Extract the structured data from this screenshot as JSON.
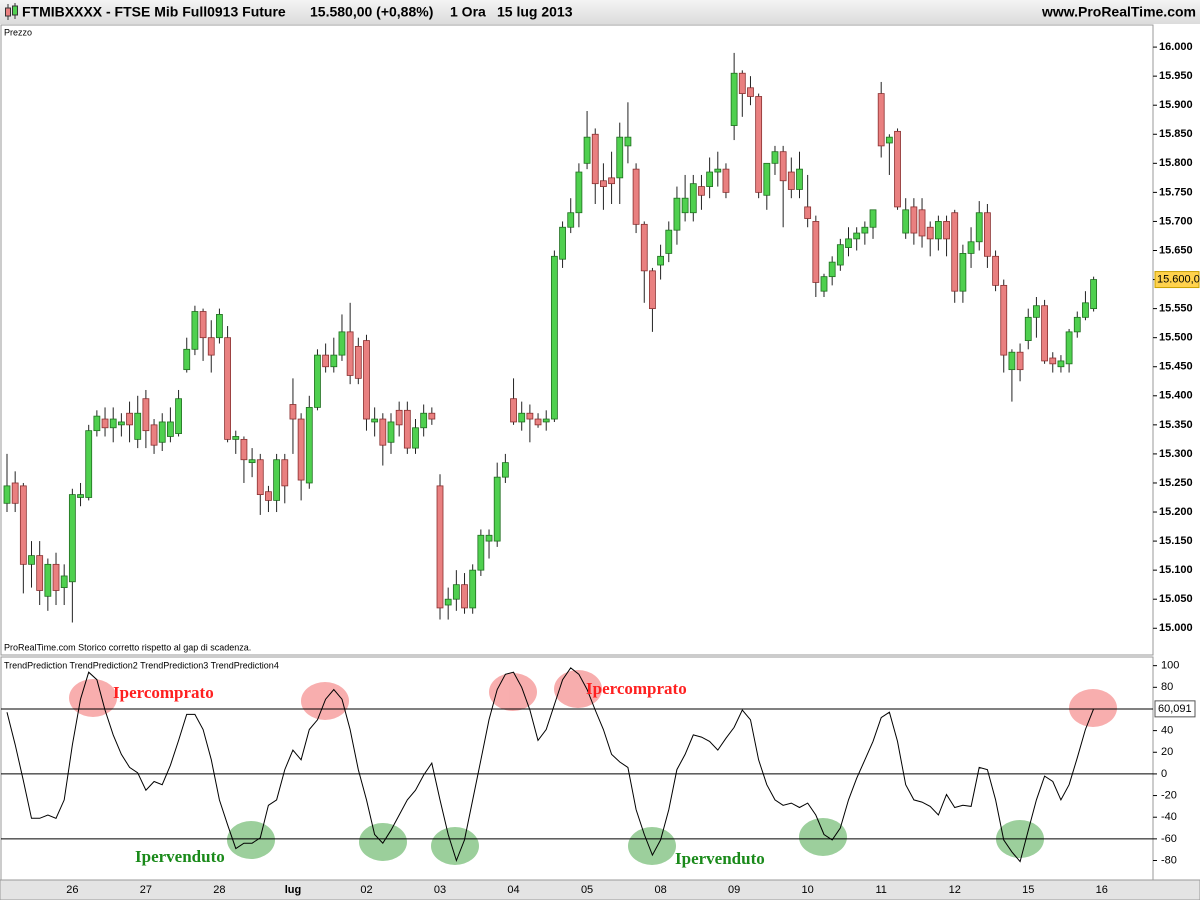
{
  "header": {
    "symbol": "FTMIBXXXX - FTSE Mib Full0913 Future",
    "quote": "15.580,00 (+0,88%)",
    "interval": "1 Ora",
    "date": "15 lug 2013",
    "site": "www.ProRealTime.com"
  },
  "chart_data": [
    {
      "type": "candlestick",
      "panel_label": "Prezzo",
      "note": "ProRealTime.com  Storico corretto rispetto al gap di scadenza.",
      "up_color": "#4fd04f",
      "down_color": "#e98080",
      "categories": [
        null,
        null,
        null,
        null,
        null,
        null,
        null,
        null,
        "26",
        null,
        null,
        null,
        null,
        null,
        null,
        null,
        null,
        "27",
        null,
        null,
        null,
        null,
        null,
        null,
        null,
        null,
        "28",
        null,
        null,
        null,
        null,
        null,
        null,
        null,
        null,
        "lug",
        null,
        null,
        null,
        null,
        null,
        null,
        null,
        null,
        "02",
        null,
        null,
        null,
        null,
        null,
        null,
        null,
        null,
        "03",
        null,
        null,
        null,
        null,
        null,
        null,
        null,
        null,
        "04",
        null,
        null,
        null,
        null,
        null,
        null,
        null,
        null,
        "05",
        null,
        null,
        null,
        null,
        null,
        null,
        null,
        null,
        "08",
        null,
        null,
        null,
        null,
        null,
        null,
        null,
        null,
        "09",
        null,
        null,
        null,
        null,
        null,
        null,
        null,
        null,
        "10",
        null,
        null,
        null,
        null,
        null,
        null,
        null,
        null,
        "11",
        null,
        null,
        null,
        null,
        null,
        null,
        null,
        null,
        "12",
        null,
        null,
        null,
        null,
        null,
        null,
        null,
        null,
        "15",
        null,
        null,
        null,
        null,
        null,
        null,
        null,
        null,
        "16"
      ],
      "open": [
        15215,
        15250,
        15245,
        15110,
        15125,
        15055,
        15110,
        15070,
        15080,
        15225,
        15225,
        15340,
        15360,
        15345,
        15350,
        15370,
        15325,
        15395,
        15350,
        15320,
        15330,
        15335,
        15445,
        15480,
        15545,
        15500,
        15500,
        15500,
        15325,
        15325,
        15285,
        15290,
        15235,
        15220,
        15290,
        15385,
        15360,
        15250,
        15380,
        15470,
        15450,
        15470,
        15510,
        15485,
        15495,
        15355,
        15360,
        15320,
        15375,
        15375,
        15310,
        15345,
        15370,
        15245,
        15040,
        15050,
        15075,
        15035,
        15100,
        15150,
        15150,
        15260,
        15395,
        15355,
        15370,
        15360,
        15355,
        15360,
        15635,
        15690,
        15715,
        15800,
        15850,
        15770,
        15775,
        15775,
        15830,
        15790,
        15695,
        15615,
        15625,
        15645,
        15685,
        15715,
        15715,
        15760,
        15760,
        15785,
        15790,
        15865,
        15955,
        15930,
        15915,
        15745,
        15800,
        15820,
        15785,
        15755,
        15725,
        15700,
        15580,
        15605,
        15625,
        15655,
        15670,
        15680,
        15690,
        15920,
        15835,
        15855,
        15680,
        15725,
        15720,
        15690,
        15670,
        15700,
        15715,
        15580,
        15645,
        15665,
        15715,
        15640,
        15590,
        15445,
        15475,
        15495,
        15535,
        15555,
        15465,
        15450,
        15455,
        15510,
        15535,
        15550,
        null
      ],
      "high": [
        15300,
        15270,
        15250,
        15150,
        15150,
        15120,
        15130,
        15110,
        15240,
        15250,
        15350,
        15375,
        15380,
        15380,
        15370,
        15390,
        15400,
        15410,
        15360,
        15370,
        15380,
        15410,
        15500,
        15555,
        15550,
        15530,
        15550,
        15520,
        15340,
        15330,
        15310,
        15300,
        15245,
        15300,
        15300,
        15430,
        15370,
        15400,
        15480,
        15490,
        15500,
        15540,
        15560,
        15500,
        15505,
        15380,
        15370,
        15370,
        15390,
        15390,
        15360,
        15385,
        15380,
        15265,
        15070,
        15100,
        15095,
        15110,
        15170,
        15170,
        15285,
        15300,
        15430,
        15390,
        15385,
        15370,
        15375,
        15650,
        15700,
        15740,
        15800,
        15890,
        15860,
        15800,
        15820,
        15870,
        15905,
        15800,
        15700,
        15620,
        15660,
        15700,
        15760,
        15780,
        15780,
        15780,
        15810,
        15820,
        15800,
        15990,
        15960,
        15950,
        15920,
        15800,
        15830,
        15830,
        15810,
        15820,
        15780,
        15710,
        15610,
        15640,
        15670,
        15690,
        15690,
        15700,
        15720,
        15940,
        15850,
        15860,
        15740,
        15740,
        15740,
        15700,
        15710,
        15710,
        15720,
        15660,
        15690,
        15735,
        15730,
        15650,
        15600,
        15480,
        15490,
        15550,
        15570,
        15565,
        15475,
        15470,
        15515,
        15545,
        15580,
        15605,
        null
      ],
      "low": [
        15200,
        15200,
        15060,
        15070,
        15040,
        15030,
        15040,
        15040,
        15010,
        15210,
        15220,
        15330,
        15330,
        15320,
        15330,
        15320,
        15310,
        15310,
        15300,
        15305,
        15320,
        15330,
        15440,
        15470,
        15460,
        15440,
        15490,
        15320,
        15300,
        15250,
        15260,
        15195,
        15200,
        15200,
        15215,
        15300,
        15220,
        15240,
        15375,
        15440,
        15440,
        15460,
        15420,
        15420,
        15340,
        15330,
        15280,
        15300,
        15330,
        15300,
        15300,
        15330,
        15350,
        15015,
        15015,
        15030,
        15025,
        15025,
        15090,
        15120,
        15140,
        15250,
        15350,
        15340,
        15320,
        15345,
        15340,
        15355,
        15620,
        15680,
        15690,
        15790,
        15730,
        15720,
        15730,
        15730,
        15800,
        15680,
        15560,
        15510,
        15600,
        15630,
        15660,
        15700,
        15700,
        15720,
        15740,
        15760,
        15740,
        15840,
        15880,
        15900,
        15740,
        15720,
        15780,
        15690,
        15740,
        15740,
        15690,
        15570,
        15570,
        15590,
        15615,
        15640,
        15650,
        15660,
        15670,
        15810,
        15780,
        15720,
        15670,
        15660,
        15655,
        15640,
        15650,
        15640,
        15560,
        15560,
        15620,
        15650,
        15620,
        15580,
        15440,
        15390,
        15425,
        15480,
        15500,
        15455,
        15440,
        15440,
        15440,
        15500,
        15530,
        15545,
        null
      ],
      "close": [
        15245,
        15215,
        15110,
        15125,
        15065,
        15110,
        15065,
        15090,
        15230,
        15230,
        15340,
        15365,
        15345,
        15360,
        15355,
        15350,
        15370,
        15340,
        15315,
        15355,
        15355,
        15395,
        15480,
        15545,
        15500,
        15470,
        15540,
        15325,
        15330,
        15290,
        15290,
        15230,
        15220,
        15290,
        15245,
        15360,
        15255,
        15380,
        15470,
        15450,
        15470,
        15510,
        15435,
        15430,
        15360,
        15360,
        15315,
        15355,
        15350,
        15310,
        15345,
        15370,
        15360,
        15035,
        15050,
        15075,
        15035,
        15100,
        15160,
        15160,
        15260,
        15285,
        15355,
        15370,
        15360,
        15350,
        15360,
        15640,
        15690,
        15715,
        15785,
        15845,
        15765,
        15760,
        15765,
        15845,
        15845,
        15695,
        15615,
        15550,
        15640,
        15685,
        15740,
        15740,
        15765,
        15745,
        15785,
        15790,
        15750,
        15955,
        15920,
        15915,
        15750,
        15800,
        15820,
        15770,
        15755,
        15790,
        15705,
        15595,
        15605,
        15630,
        15660,
        15670,
        15680,
        15690,
        15720,
        15830,
        15845,
        15725,
        15720,
        15680,
        15675,
        15670,
        15700,
        15670,
        15580,
        15645,
        15665,
        15715,
        15640,
        15590,
        15470,
        15475,
        15445,
        15535,
        15555,
        15460,
        15455,
        15460,
        15510,
        15535,
        15560,
        15600,
        null
      ],
      "last_value_label": "15.600,00",
      "ylim": [
        14954,
        16038
      ],
      "yticks": [
        {
          "value": 15000,
          "label": "15.000"
        },
        {
          "value": 15050,
          "label": "15.050"
        },
        {
          "value": 15100,
          "label": "15.100"
        },
        {
          "value": 15150,
          "label": "15.150"
        },
        {
          "value": 15200,
          "label": "15.200"
        },
        {
          "value": 15250,
          "label": "15.250"
        },
        {
          "value": 15300,
          "label": "15.300"
        },
        {
          "value": 15350,
          "label": "15.350"
        },
        {
          "value": 15400,
          "label": "15.400"
        },
        {
          "value": 15450,
          "label": "15.450"
        },
        {
          "value": 15500,
          "label": "15.500"
        },
        {
          "value": 15550,
          "label": "15.550"
        },
        {
          "value": 15600,
          "label": "15.600"
        },
        {
          "value": 15650,
          "label": "15.650"
        },
        {
          "value": 15700,
          "label": "15.700"
        },
        {
          "value": 15750,
          "label": "15.750"
        },
        {
          "value": 15800,
          "label": "15.800"
        },
        {
          "value": 15850,
          "label": "15.850"
        },
        {
          "value": 15900,
          "label": "15.900"
        },
        {
          "value": 15950,
          "label": "15.950"
        },
        {
          "value": 16000,
          "label": "16.000"
        }
      ]
    },
    {
      "type": "line",
      "panel_label": "TrendPrediction TrendPrediction2 TrendPrediction3 TrendPrediction4",
      "color": "#000000",
      "values": [
        57,
        27,
        -6,
        -41,
        -41,
        -38,
        -41,
        -24,
        27,
        69,
        94,
        87,
        59,
        36,
        18,
        6,
        1,
        -15,
        -7,
        -10,
        8,
        31,
        55,
        55,
        41,
        13,
        -24,
        -47,
        -69,
        -64,
        -64,
        -59,
        -29,
        -24,
        4,
        22,
        13,
        41,
        50,
        69,
        78,
        69,
        41,
        4,
        -24,
        -56,
        -64,
        -52,
        -38,
        -24,
        -15,
        -1,
        10,
        -24,
        -56,
        -80,
        -61,
        -24,
        13,
        50,
        78,
        92,
        94,
        80,
        59,
        31,
        41,
        64,
        87,
        98,
        92,
        78,
        59,
        41,
        18,
        11,
        6,
        -33,
        -56,
        -75,
        -61,
        -33,
        4,
        18,
        36,
        34,
        30,
        22,
        33,
        43,
        59,
        50,
        13,
        -10,
        -24,
        -29,
        -27,
        -31,
        -27,
        -38,
        -56,
        -61,
        -50,
        -24,
        -4,
        13,
        30,
        52,
        57,
        30,
        -10,
        -24,
        -26,
        -30,
        -38,
        -19,
        -31,
        -29,
        -30,
        6,
        4,
        -24,
        -61,
        -72,
        -81,
        -52,
        -24,
        -2,
        -7,
        -24,
        -10,
        15,
        41,
        60.091,
        null
      ],
      "last_value_label": "60,091",
      "levels": [
        60,
        0,
        -60
      ],
      "ylim": [
        -98,
        108
      ],
      "yticks": [
        100,
        80,
        40,
        20,
        0,
        -20,
        -40,
        -60,
        -80
      ],
      "annotations": [
        {
          "text": "Ipercomprato",
          "color": "#ff2020"
        },
        {
          "text": "Ipercomprato",
          "color": "#ff2020"
        },
        {
          "text": "Ipervenduto",
          "color": "#1a8a1a"
        },
        {
          "text": "Ipervenduto",
          "color": "#1a8a1a"
        }
      ]
    }
  ]
}
